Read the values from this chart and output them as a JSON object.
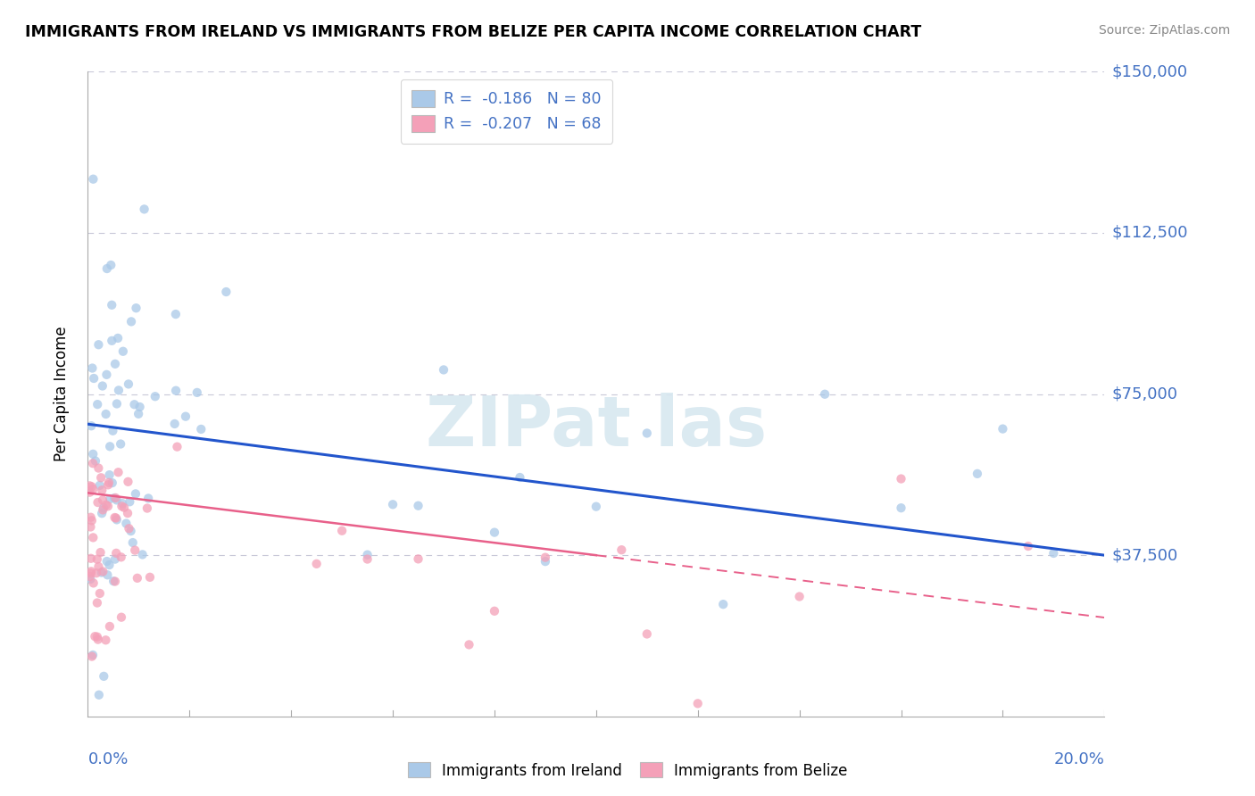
{
  "title": "IMMIGRANTS FROM IRELAND VS IMMIGRANTS FROM BELIZE PER CAPITA INCOME CORRELATION CHART",
  "source": "Source: ZipAtlas.com",
  "ylabel": "Per Capita Income",
  "ytick_vals": [
    37500,
    75000,
    112500,
    150000
  ],
  "ytick_labels": [
    "$37,500",
    "$75,000",
    "$112,500",
    "$150,000"
  ],
  "xlim": [
    0.0,
    20.0
  ],
  "ylim": [
    0,
    150000
  ],
  "ireland_color": "#aac9e8",
  "belize_color": "#f4a0b8",
  "ireland_line_color": "#2255cc",
  "belize_line_color": "#e8608a",
  "ireland_R": -0.186,
  "ireland_N": 80,
  "belize_R": -0.207,
  "belize_N": 68,
  "ireland_line_x0": 0.0,
  "ireland_line_y0": 68000,
  "ireland_line_x1": 20.0,
  "ireland_line_y1": 37500,
  "belize_solid_x0": 0.0,
  "belize_solid_y0": 52000,
  "belize_solid_x1": 10.0,
  "belize_solid_y1": 37500,
  "belize_dash_x0": 10.0,
  "belize_dash_y0": 37500,
  "belize_dash_x1": 20.0,
  "belize_dash_y1": 23000,
  "grid_color": "#c8c8d8",
  "spine_color": "#aaaaaa",
  "label_color": "#4472c4",
  "watermark": "ZIPat las"
}
